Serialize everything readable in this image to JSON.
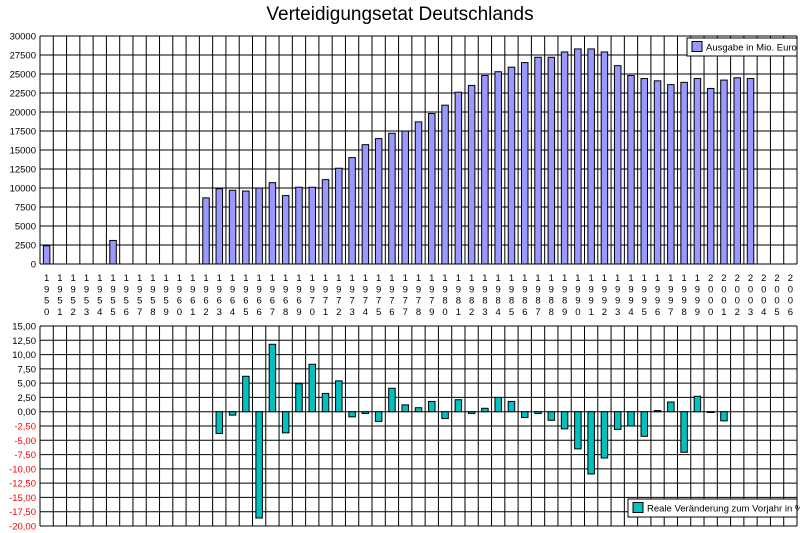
{
  "chart_data": [
    {
      "type": "bar",
      "title": "Verteidigungsetat Deutschlands",
      "series": [
        {
          "name": "Ausgabe in Mio. Euro",
          "color": "#9999ff",
          "values": [
            2400,
            null,
            null,
            null,
            null,
            3100,
            null,
            null,
            null,
            null,
            null,
            null,
            8700,
            9900,
            9700,
            9600,
            10000,
            10700,
            9000,
            10100,
            10100,
            11100,
            12600,
            14000,
            15700,
            16500,
            17200,
            17500,
            18700,
            19800,
            20900,
            22600,
            23500,
            24800,
            25300,
            25900,
            26500,
            27200,
            27200,
            27900,
            28300,
            28300,
            27900,
            26100,
            24800,
            24400,
            24100,
            23600,
            23900,
            24400,
            23100,
            24200,
            24500,
            24400,
            null,
            null,
            null
          ]
        }
      ],
      "ylim": [
        0,
        30000
      ],
      "ytick_labels": [
        "0",
        "2500",
        "5000",
        "7500",
        "10000",
        "12500",
        "15000",
        "17500",
        "20000",
        "22500",
        "25000",
        "27500",
        "30000"
      ],
      "grid": true,
      "legend": "top-right"
    },
    {
      "type": "bar",
      "series": [
        {
          "name": "Reale Veränderung zum Vorjahr in %",
          "color": "#00c0c0",
          "values": [
            null,
            null,
            null,
            null,
            null,
            null,
            null,
            null,
            null,
            null,
            null,
            null,
            null,
            -3.8,
            -0.6,
            6.2,
            -18.6,
            11.8,
            -3.7,
            4.9,
            8.3,
            3.2,
            5.4,
            -0.9,
            -0.3,
            -1.7,
            4.1,
            1.2,
            0.7,
            1.8,
            -1.2,
            2.1,
            -0.3,
            0.6,
            2.5,
            1.8,
            -1.0,
            -0.3,
            -1.5,
            -3.0,
            -6.5,
            -10.9,
            -8.1,
            -3.1,
            -2.5,
            -4.3,
            0.2,
            1.7,
            -7.1,
            2.7,
            -0.1,
            -1.6,
            null,
            null,
            null,
            null,
            null
          ]
        }
      ],
      "ylim": [
        -20,
        15
      ],
      "ytick_labels": [
        "15,00",
        "12,50",
        "10,00",
        "7,50",
        "5,00",
        "2,50",
        "0,00",
        "-2,50",
        "-5,00",
        "-7,50",
        "-10,00",
        "-12,50",
        "-15,00",
        "-17,50",
        "-20,00"
      ],
      "positive_label_color": "#000000",
      "negative_label_color": "#ff0000",
      "grid": true,
      "legend": "bottom-right"
    }
  ],
  "x_axis": {
    "categories": [
      "1950",
      "1951",
      "1952",
      "1953",
      "1954",
      "1955",
      "1956",
      "1957",
      "1958",
      "1959",
      "1960",
      "1961",
      "1962",
      "1963",
      "1964",
      "1965",
      "1966",
      "1967",
      "1968",
      "1969",
      "1970",
      "1971",
      "1972",
      "1973",
      "1974",
      "1975",
      "1976",
      "1977",
      "1978",
      "1979",
      "1980",
      "1981",
      "1982",
      "1983",
      "1984",
      "1985",
      "1986",
      "1987",
      "1988",
      "1989",
      "1990",
      "1991",
      "1992",
      "1993",
      "1994",
      "1995",
      "1996",
      "1997",
      "1998",
      "1999",
      "2000",
      "2001",
      "2002",
      "2003",
      "2004",
      "2005",
      "2006"
    ]
  }
}
